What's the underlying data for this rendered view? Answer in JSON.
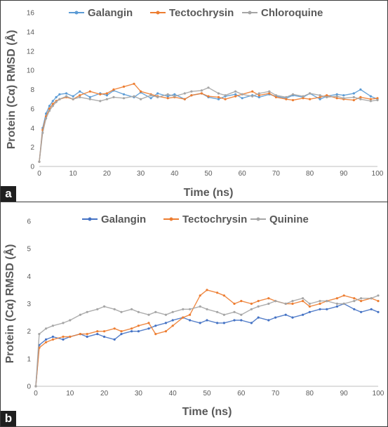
{
  "chart_data": [
    {
      "panel_label": "a",
      "type": "line",
      "xlabel": "Time (ns)",
      "ylabel": "Protein (Cα) RMSD (Å)",
      "xlim": [
        0,
        100
      ],
      "ylim": [
        0,
        16
      ],
      "xticks": [
        0,
        10,
        20,
        30,
        40,
        50,
        60,
        70,
        80,
        90,
        100
      ],
      "yticks": [
        0,
        2,
        4,
        6,
        8,
        10,
        12,
        14,
        16
      ],
      "legend_position": "top",
      "grid": false,
      "series": [
        {
          "name": "Galangin",
          "color": "#5b9bd5",
          "x": [
            0,
            1,
            2,
            3,
            4,
            5,
            6,
            8,
            10,
            12,
            15,
            18,
            20,
            22,
            25,
            28,
            30,
            33,
            35,
            38,
            40,
            43,
            45,
            48,
            50,
            53,
            55,
            58,
            60,
            63,
            65,
            68,
            70,
            73,
            75,
            78,
            80,
            83,
            85,
            88,
            90,
            93,
            95,
            98,
            100
          ],
          "y": [
            0.5,
            4.0,
            5.5,
            6.3,
            6.8,
            7.2,
            7.5,
            7.6,
            7.3,
            7.8,
            7.2,
            7.6,
            7.4,
            7.9,
            7.5,
            7.2,
            7.7,
            7.1,
            7.6,
            7.3,
            7.5,
            7.0,
            7.4,
            7.6,
            7.2,
            7.0,
            7.3,
            7.5,
            7.1,
            7.4,
            7.2,
            7.5,
            7.3,
            7.1,
            7.4,
            7.2,
            7.6,
            7.0,
            7.3,
            7.5,
            7.4,
            7.6,
            8.0,
            7.3,
            7.0
          ]
        },
        {
          "name": "Tectochrysin",
          "color": "#ed7d31",
          "x": [
            0,
            1,
            2,
            3,
            4,
            5,
            6,
            8,
            10,
            12,
            15,
            18,
            20,
            22,
            25,
            28,
            30,
            33,
            35,
            38,
            40,
            43,
            45,
            48,
            50,
            53,
            55,
            58,
            60,
            63,
            65,
            68,
            70,
            73,
            75,
            78,
            80,
            83,
            85,
            88,
            90,
            93,
            95,
            98,
            100
          ],
          "y": [
            0.5,
            3.8,
            5.2,
            6.0,
            6.5,
            6.8,
            7.0,
            7.2,
            7.0,
            7.4,
            7.8,
            7.5,
            7.6,
            8.0,
            8.3,
            8.6,
            7.8,
            7.5,
            7.3,
            7.1,
            7.2,
            7.0,
            7.4,
            7.6,
            7.3,
            7.2,
            7.0,
            7.3,
            7.5,
            7.8,
            7.4,
            7.6,
            7.2,
            7.0,
            6.9,
            7.1,
            7.0,
            7.2,
            7.4,
            7.1,
            7.0,
            6.9,
            7.2,
            7.0,
            7.1
          ]
        },
        {
          "name": "Chloroquine",
          "color": "#a5a5a5",
          "x": [
            0,
            1,
            2,
            3,
            4,
            5,
            6,
            8,
            10,
            12,
            15,
            18,
            20,
            22,
            25,
            28,
            30,
            33,
            35,
            38,
            40,
            43,
            45,
            48,
            50,
            53,
            55,
            58,
            60,
            63,
            65,
            68,
            70,
            73,
            75,
            78,
            80,
            83,
            85,
            88,
            90,
            93,
            95,
            98,
            100
          ],
          "y": [
            0.5,
            3.5,
            5.0,
            5.8,
            6.3,
            6.7,
            7.0,
            7.3,
            7.0,
            7.2,
            7.0,
            6.8,
            7.0,
            7.2,
            7.1,
            7.3,
            7.0,
            7.4,
            7.2,
            7.5,
            7.3,
            7.6,
            7.8,
            7.9,
            8.2,
            7.6,
            7.4,
            7.8,
            7.5,
            7.3,
            7.6,
            7.8,
            7.4,
            7.2,
            7.5,
            7.3,
            7.6,
            7.4,
            7.2,
            7.3,
            7.1,
            7.2,
            7.0,
            6.8,
            6.9
          ]
        }
      ]
    },
    {
      "panel_label": "b",
      "type": "line",
      "xlabel": "Time (ns)",
      "ylabel": "Protein (Cα) RMSD (Å)",
      "xlim": [
        0,
        100
      ],
      "ylim": [
        0,
        6
      ],
      "xticks": [
        0,
        10,
        20,
        30,
        40,
        50,
        60,
        70,
        80,
        90,
        100
      ],
      "yticks": [
        0,
        1,
        2,
        3,
        4,
        5,
        6
      ],
      "legend_position": "top",
      "grid": false,
      "series": [
        {
          "name": "Galangin",
          "color": "#4472c4",
          "x": [
            0,
            1,
            3,
            5,
            8,
            10,
            13,
            15,
            18,
            20,
            23,
            25,
            28,
            30,
            33,
            35,
            38,
            40,
            43,
            45,
            48,
            50,
            53,
            55,
            58,
            60,
            63,
            65,
            68,
            70,
            73,
            75,
            78,
            80,
            83,
            85,
            88,
            90,
            93,
            95,
            98,
            100
          ],
          "y": [
            0.0,
            1.5,
            1.7,
            1.8,
            1.7,
            1.8,
            1.9,
            1.8,
            1.9,
            1.8,
            1.7,
            1.9,
            2.0,
            2.0,
            2.1,
            2.2,
            2.3,
            2.4,
            2.5,
            2.4,
            2.3,
            2.4,
            2.3,
            2.3,
            2.4,
            2.4,
            2.3,
            2.5,
            2.4,
            2.5,
            2.6,
            2.5,
            2.6,
            2.7,
            2.8,
            2.8,
            2.9,
            3.0,
            2.8,
            2.7,
            2.8,
            2.7
          ]
        },
        {
          "name": "Tectochrysin",
          "color": "#ed7d31",
          "x": [
            0,
            1,
            3,
            5,
            8,
            10,
            13,
            15,
            18,
            20,
            23,
            25,
            28,
            30,
            33,
            35,
            38,
            40,
            43,
            45,
            48,
            50,
            53,
            55,
            58,
            60,
            63,
            65,
            68,
            70,
            73,
            75,
            78,
            80,
            83,
            85,
            88,
            90,
            93,
            95,
            98,
            100
          ],
          "y": [
            0.0,
            1.4,
            1.6,
            1.7,
            1.8,
            1.8,
            1.9,
            1.9,
            2.0,
            2.0,
            2.1,
            2.0,
            2.1,
            2.2,
            2.3,
            1.9,
            2.0,
            2.2,
            2.5,
            2.6,
            3.3,
            3.5,
            3.4,
            3.3,
            3.0,
            3.1,
            3.0,
            3.1,
            3.2,
            3.1,
            3.0,
            3.0,
            3.1,
            2.9,
            3.0,
            3.1,
            3.2,
            3.3,
            3.2,
            3.1,
            3.2,
            3.1
          ]
        },
        {
          "name": "Quinine",
          "color": "#a5a5a5",
          "x": [
            0,
            1,
            3,
            5,
            8,
            10,
            13,
            15,
            18,
            20,
            23,
            25,
            28,
            30,
            33,
            35,
            38,
            40,
            43,
            45,
            48,
            50,
            53,
            55,
            58,
            60,
            63,
            65,
            68,
            70,
            73,
            75,
            78,
            80,
            83,
            85,
            88,
            90,
            93,
            95,
            98,
            100
          ],
          "y": [
            0.0,
            1.9,
            2.1,
            2.2,
            2.3,
            2.4,
            2.6,
            2.7,
            2.8,
            2.9,
            2.8,
            2.7,
            2.8,
            2.7,
            2.6,
            2.7,
            2.6,
            2.7,
            2.8,
            2.8,
            2.9,
            2.8,
            2.7,
            2.6,
            2.7,
            2.6,
            2.8,
            2.9,
            3.0,
            3.1,
            3.0,
            3.1,
            3.2,
            3.0,
            3.1,
            3.1,
            3.0,
            3.0,
            3.1,
            3.2,
            3.2,
            3.3
          ]
        }
      ]
    }
  ]
}
